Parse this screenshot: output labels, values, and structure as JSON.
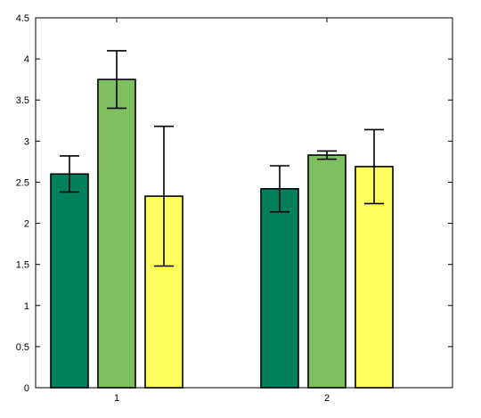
{
  "chart_data": {
    "type": "bar",
    "categories": [
      "1",
      "2"
    ],
    "series": [
      {
        "color": "#007f5f",
        "values": [
          2.6,
          2.42
        ],
        "errors": [
          0.22,
          0.28
        ]
      },
      {
        "color": "#7fbf5f",
        "values": [
          3.75,
          2.83
        ],
        "errors": [
          0.35,
          0.05
        ]
      },
      {
        "color": "#ffff5f",
        "values": [
          2.33,
          2.69
        ],
        "errors": [
          0.85,
          0.45
        ]
      }
    ],
    "ylim": [
      0,
      4.5
    ],
    "yticks": [
      0,
      0.5,
      1,
      1.5,
      2,
      2.5,
      3,
      3.5,
      4,
      4.5
    ],
    "ytick_labels": [
      "0",
      "0.5",
      "1",
      "1.5",
      "2",
      "2.5",
      "3",
      "3.5",
      "4",
      "4.5"
    ],
    "grid": false,
    "title": "",
    "xlabel": "",
    "ylabel": ""
  }
}
